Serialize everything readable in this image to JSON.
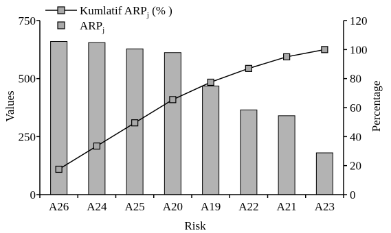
{
  "chart_data": {
    "type": "bar",
    "categories": [
      "A26",
      "A24",
      "A25",
      "A20",
      "A19",
      "A22",
      "A21",
      "A23"
    ],
    "xlabel": "Risk",
    "ylabel": "Values",
    "y2label": "Percentage",
    "ylim": [
      0,
      750
    ],
    "y2lim": [
      0,
      120
    ],
    "yticks": [
      0,
      250,
      500,
      750
    ],
    "y2ticks": [
      0,
      20,
      40,
      60,
      80,
      100,
      120
    ],
    "grid": false,
    "legend_position": "top-left",
    "series": [
      {
        "name": "Kumlatif ARPj (% )",
        "axis": "right",
        "type": "line",
        "values": [
          17.5,
          33.5,
          49.5,
          65.5,
          77.5,
          87.0,
          95.0,
          100.0
        ]
      },
      {
        "name": "ARPj",
        "axis": "left",
        "type": "bar",
        "values": [
          660,
          655,
          628,
          612,
          468,
          365,
          340,
          180
        ]
      }
    ],
    "colors": {
      "bar": "#b3b3b3",
      "marker": "#a9a9a9",
      "line": "#000000"
    }
  },
  "legend": {
    "line_label_main": "Kumlatif ARP",
    "line_label_sub": "j",
    "line_label_tail": " (% )",
    "bar_label_main": "ARP",
    "bar_label_sub": "j"
  }
}
